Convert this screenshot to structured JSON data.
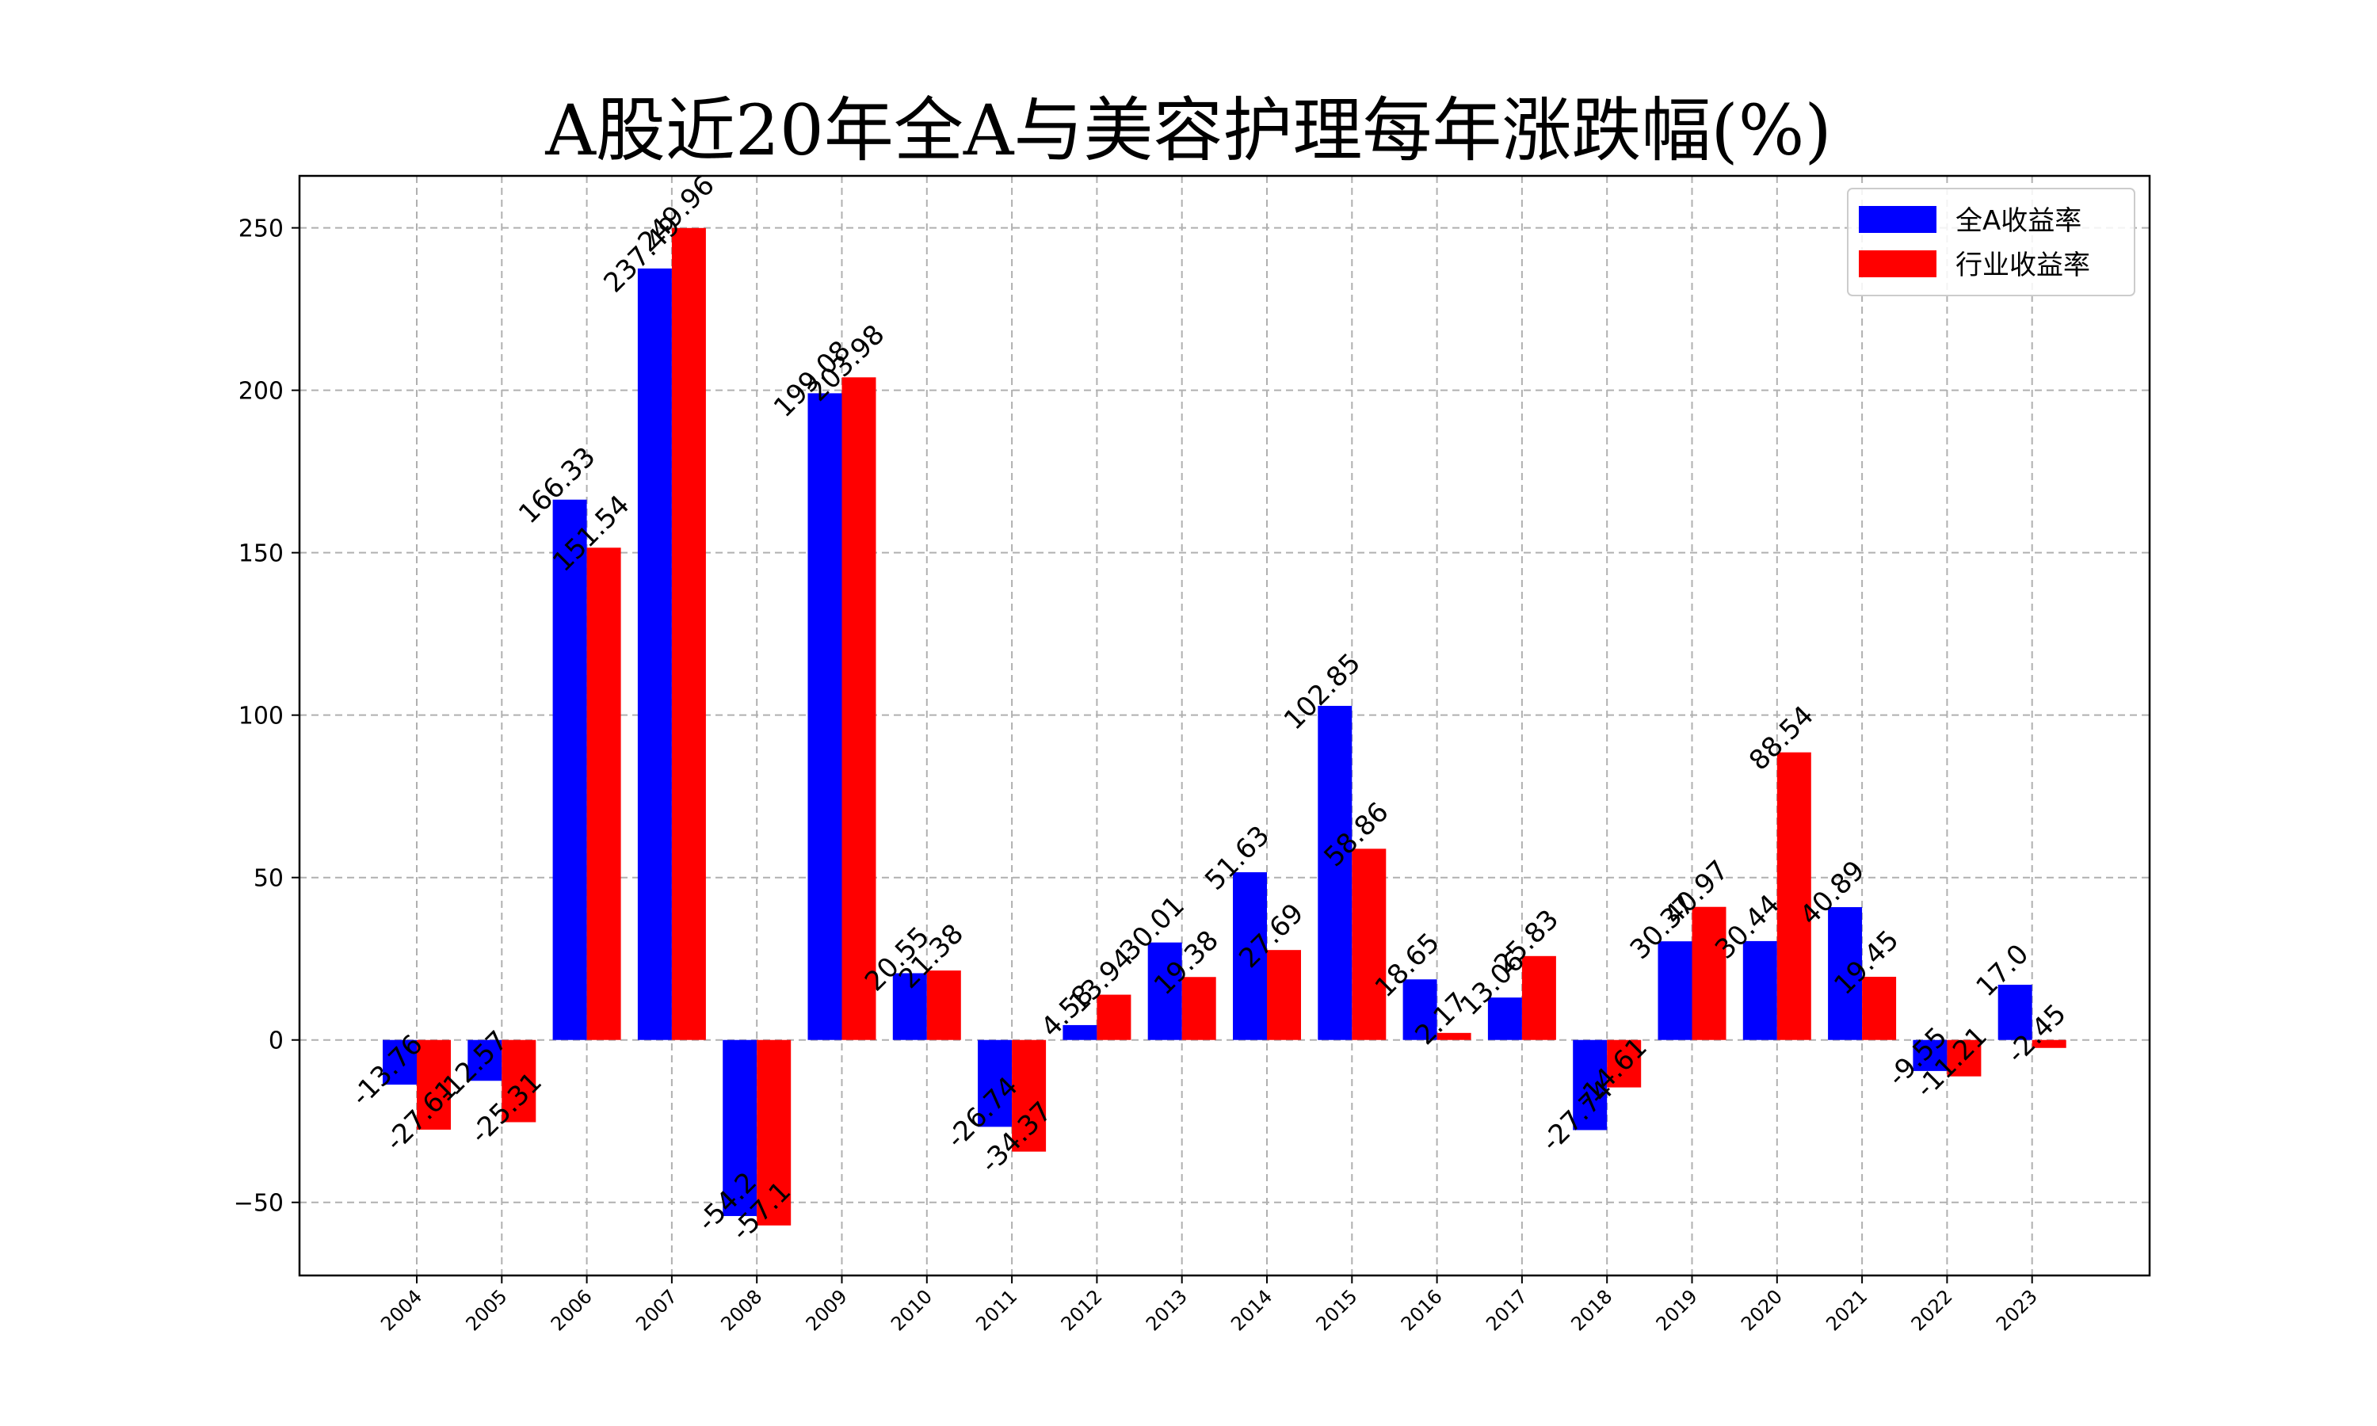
{
  "chart_data": {
    "type": "bar",
    "title": "A股近20年全A与美容护理每年涨跌幅(%)",
    "xlabel": "",
    "ylabel": "",
    "categories": [
      "2004",
      "2005",
      "2006",
      "2007",
      "2008",
      "2009",
      "2010",
      "2011",
      "2012",
      "2013",
      "2014",
      "2015",
      "2016",
      "2017",
      "2018",
      "2019",
      "2020",
      "2021",
      "2022",
      "2023"
    ],
    "series": [
      {
        "name": "全A收益率",
        "color": "#0000ff",
        "values": [
          -13.76,
          -12.57,
          166.33,
          237.49,
          -54.2,
          199.08,
          20.55,
          -26.74,
          4.58,
          30.01,
          51.63,
          102.85,
          18.65,
          13.06,
          -27.74,
          30.37,
          30.44,
          40.89,
          -9.55,
          17.0
        ],
        "labels": [
          "-13.76",
          "-12.57",
          "166.33",
          "237.49",
          "-54.2",
          "199.08",
          "20.55",
          "-26.74",
          "4.58",
          "30.01",
          "51.63",
          "102.85",
          "18.65",
          "13.06",
          "-27.74",
          "30.37",
          "30.44",
          "40.89",
          "-9.55",
          "17.0"
        ]
      },
      {
        "name": "行业收益率",
        "color": "#ff0000",
        "values": [
          -27.61,
          -25.31,
          151.54,
          249.96,
          -57.1,
          203.98,
          21.38,
          -34.37,
          13.94,
          19.38,
          27.69,
          58.86,
          2.17,
          25.83,
          -14.61,
          40.97,
          88.54,
          19.45,
          -11.21,
          -2.45
        ],
        "labels": [
          "-27.61",
          "-25.31",
          "151.54",
          "249.96",
          "-57.1",
          "203.98",
          "21.38",
          "-34.37",
          "13.94",
          "19.38",
          "27.69",
          "58.86",
          "2.17",
          "25.83",
          "-14.61",
          "40.97",
          "88.54",
          "19.45",
          "-11.21",
          "-2.45"
        ]
      }
    ],
    "ylim": [
      -72.5,
      266
    ],
    "yticks": [
      -50,
      0,
      50,
      100,
      150,
      200,
      250
    ],
    "ytick_labels": [
      "−50",
      "0",
      "50",
      "100",
      "150",
      "200",
      "250"
    ],
    "grid": true,
    "legend_position": "top-right"
  }
}
